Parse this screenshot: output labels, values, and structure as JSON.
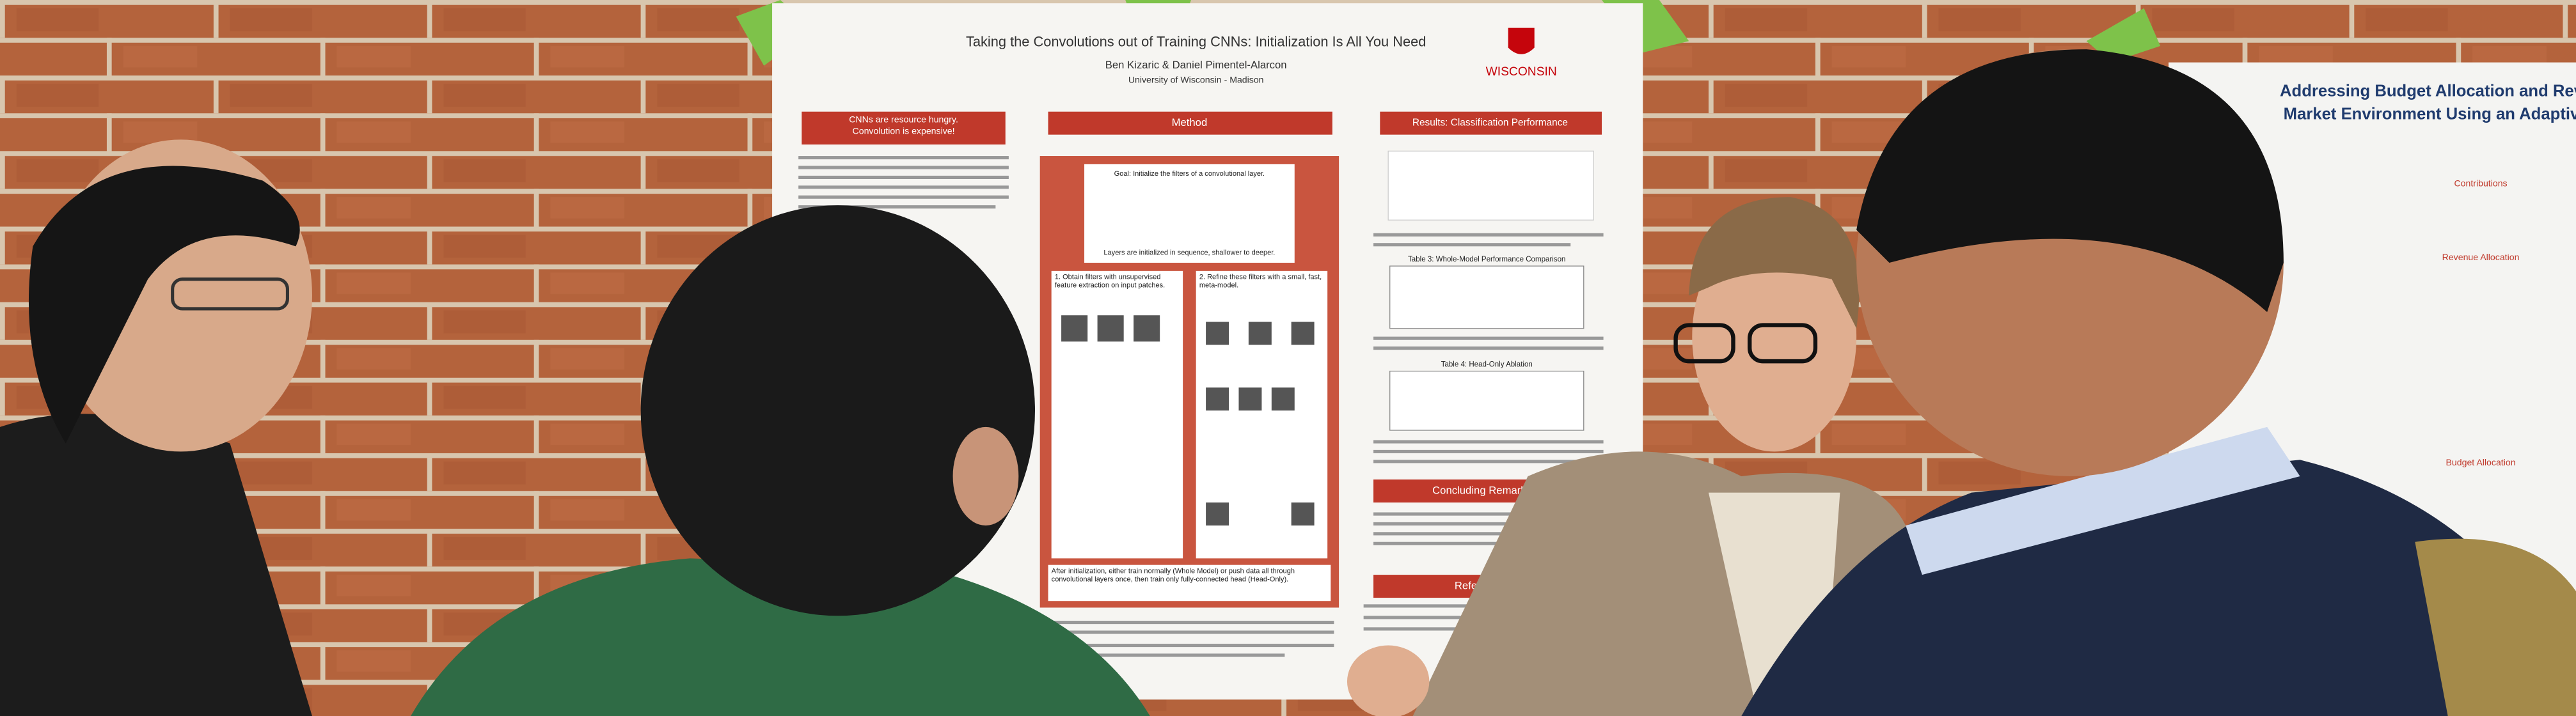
{
  "poster": {
    "title": "Taking the Convolutions out of Training CNNs: Initialization Is All You Need",
    "authors": "Ben Kizaric & Daniel Pimentel-Alarcon",
    "affiliation": "University of Wisconsin - Madison",
    "logo": "WISCONSIN",
    "sections": [
      "CNNs are resource hungry. Convolution is expensive!",
      "Method",
      "Results: Classification Performance",
      "Concluding Remarks",
      "References"
    ],
    "method": {
      "goal": "Goal: Initialize the filters of a convolutional layer.",
      "sequence": "Layers are initialized in sequence, shallower to deeper.",
      "step1": "1. Obtain filters with unsupervised feature extraction on input patches.",
      "step2": "2. Refine these filters with a small, fast, meta-model.",
      "after": "After initialization, either train normally (Whole Model) or push data all through convolutional layers once, then train only fully-connected head (Head-Only)."
    },
    "tables": [
      "Table 3: Whole-Model Performance Comparison",
      "Table 4: Head-Only Ablation"
    ]
  },
  "second_poster": {
    "title_lines": [
      "Addressing Budget Allocation and Rev",
      "Market Environment Using an Adaptiv"
    ],
    "sections": [
      "Contributions",
      "Revenue Allocation",
      "Budget Allocation"
    ]
  }
}
